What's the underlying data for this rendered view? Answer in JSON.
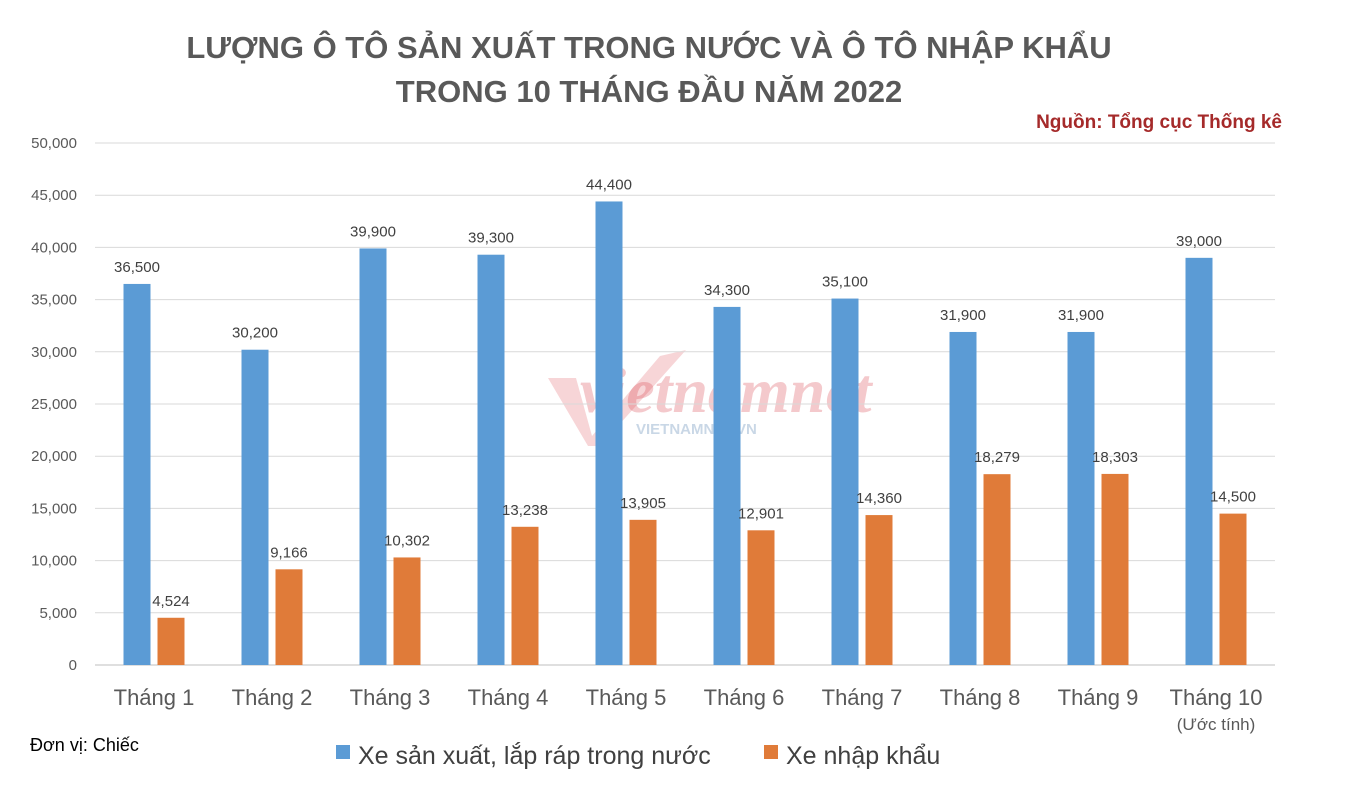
{
  "chart_data": {
    "type": "bar",
    "title_lines": [
      "LƯỢNG Ô TÔ SẢN XUẤT TRONG NƯỚC VÀ Ô TÔ NHẬP KHẨU",
      "TRONG 10 THÁNG ĐẦU NĂM 2022"
    ],
    "source": "Nguồn: Tổng cục Thống kê",
    "unit_note": "Đơn vị: Chiếc",
    "categories": [
      "Tháng 1",
      "Tháng 2",
      "Tháng 3",
      "Tháng 4",
      "Tháng 5",
      "Tháng 6",
      "Tháng 7",
      "Tháng 8",
      "Tháng 9",
      "Tháng 10"
    ],
    "category_sublabels": [
      "",
      "",
      "",
      "",
      "",
      "",
      "",
      "",
      "",
      "(Ước tính)"
    ],
    "series": [
      {
        "name": "Xe sản xuất, lắp ráp trong nước",
        "color": "#5b9bd5",
        "values": [
          36500,
          30200,
          39900,
          39300,
          44400,
          34300,
          35100,
          31900,
          31900,
          39000
        ],
        "labels": [
          "36,500",
          "30,200",
          "39,900",
          "39,300",
          "44,400",
          "34,300",
          "35,100",
          "31,900",
          "31,900",
          "39,000"
        ]
      },
      {
        "name": "Xe nhập khẩu",
        "color": "#e07b39",
        "values": [
          4524,
          9166,
          10302,
          13238,
          13905,
          12901,
          14360,
          18279,
          18303,
          14500
        ],
        "labels": [
          "4,524",
          "9,166",
          "10,302",
          "13,238",
          "13,905",
          "12,901",
          "14,360",
          "18,279",
          "18,303",
          "14,500"
        ]
      }
    ],
    "ylim": [
      0,
      50000
    ],
    "yticks": [
      0,
      5000,
      10000,
      15000,
      20000,
      25000,
      30000,
      35000,
      40000,
      45000,
      50000
    ],
    "ytick_labels": [
      "0",
      "5,000",
      "10,000",
      "15,000",
      "20,000",
      "25,000",
      "30,000",
      "35,000",
      "40,000",
      "45,000",
      "50,000"
    ],
    "grid": true,
    "legend_position": "bottom"
  },
  "watermark": {
    "main": "vietnamnet",
    "sub": "VIETNAMNET.VN"
  }
}
